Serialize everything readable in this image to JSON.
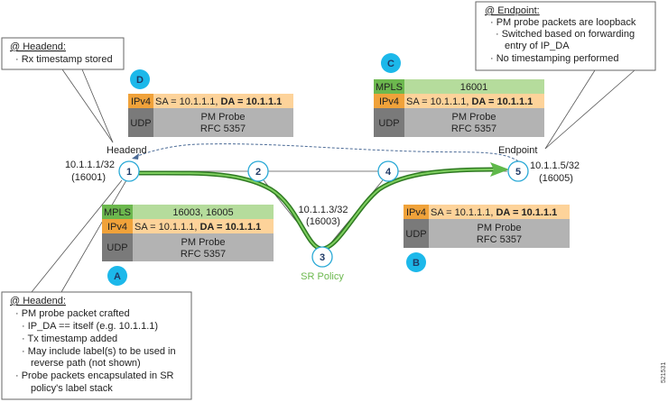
{
  "callouts": {
    "headend_rx": {
      "title": "@ Headend:",
      "items": [
        "· Rx timestamp stored"
      ]
    },
    "endpoint": {
      "title": "@ Endpoint:",
      "items": [
        "· PM probe packets are loopback",
        "· Switched based on forwarding",
        "entry of IP_DA",
        "· No timestamping performed"
      ]
    },
    "headend_tx": {
      "title": "@ Headend:",
      "items": [
        "· PM probe packet crafted",
        "· IP_DA == itself (e.g. 10.1.1.1)",
        "· Tx timestamp added",
        "· May include label(s) to be used in",
        "reverse path (not shown)",
        "· Probe packets encapsulated in SR",
        "policy's label stack"
      ]
    }
  },
  "nodes": {
    "n1": {
      "label": "1",
      "role": "Headend",
      "prefix": "10.1.1.1/32",
      "sid": "(16001)"
    },
    "n2": {
      "label": "2"
    },
    "n3": {
      "label": "3",
      "prefix": "10.1.1.3/32",
      "sid": "(16003)"
    },
    "n4": {
      "label": "4"
    },
    "n5": {
      "label": "5",
      "role": "Endpoint",
      "prefix": "10.1.1.5/32",
      "sid": "(16005)"
    }
  },
  "sr_policy_label": "SR Policy",
  "packets": {
    "A": {
      "badge": "A",
      "mpls_label": "MPLS",
      "mpls_value": "16003, 16005",
      "ipv4_label": "IPv4",
      "sa": "SA = 10.1.1.1, ",
      "da": "DA = 10.1.1.1",
      "udp_label": "UDP",
      "payload1": "PM Probe",
      "payload2": "RFC 5357"
    },
    "B": {
      "badge": "B",
      "ipv4_label": "IPv4",
      "sa": "SA = 10.1.1.1, ",
      "da": "DA = 10.1.1.1",
      "udp_label": "UDP",
      "payload1": "PM Probe",
      "payload2": "RFC 5357"
    },
    "C": {
      "badge": "C",
      "mpls_label": "MPLS",
      "mpls_value": "16001",
      "ipv4_label": "IPv4",
      "sa": "SA = 10.1.1.1, ",
      "da": "DA = 10.1.1.1",
      "udp_label": "UDP",
      "payload1": "PM Probe",
      "payload2": "RFC 5357"
    },
    "D": {
      "badge": "D",
      "ipv4_label": "IPv4",
      "sa": "SA = 10.1.1.1, ",
      "da": "DA = 10.1.1.1",
      "udp_label": "UDP",
      "payload1": "PM Probe",
      "payload2": "RFC 5357"
    }
  },
  "figure_id": "521531",
  "colors": {
    "mpls_label": "#6cb84e",
    "mpls_value": "#b5dc9c",
    "ipv4_label": "#f0a23a",
    "ipv4_value": "#fdd39a",
    "udp_label": "#7a7a7a",
    "udp_value": "#b3b3b3",
    "badge": "#1cb8ea",
    "sr_path": "#3d9a2e",
    "return_path": "#4a6a96"
  }
}
